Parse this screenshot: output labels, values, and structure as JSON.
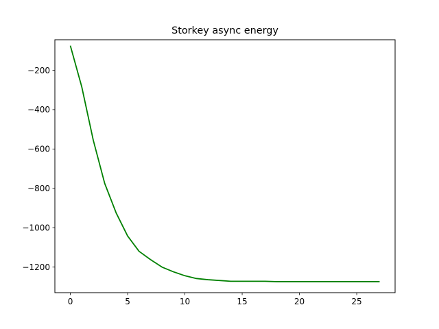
{
  "chart_data": {
    "type": "line",
    "title": "Storkey async energy",
    "xlabel": "",
    "ylabel": "",
    "xlim": [
      -1.35,
      28.35
    ],
    "ylim": [
      -1330,
      -45
    ],
    "x_ticks": [
      0,
      5,
      10,
      15,
      20,
      25
    ],
    "x_tick_labels": [
      "0",
      "5",
      "10",
      "15",
      "20",
      "25"
    ],
    "y_ticks": [
      -200,
      -400,
      -600,
      -800,
      -1000,
      -1200
    ],
    "y_tick_labels": [
      "−200",
      "−400",
      "−600",
      "−800",
      "−1000",
      "−1200"
    ],
    "grid": false,
    "legend": "none",
    "series": [
      {
        "color": "#008000",
        "x": [
          0,
          1,
          2,
          3,
          4,
          5,
          6,
          7,
          8,
          9,
          10,
          11,
          12,
          13,
          14,
          15,
          16,
          17,
          18,
          19,
          20,
          21,
          22,
          23,
          24,
          25,
          26,
          27
        ],
        "values": [
          -75,
          -285,
          -555,
          -775,
          -925,
          -1042,
          -1120,
          -1162,
          -1200,
          -1224,
          -1244,
          -1258,
          -1264,
          -1268,
          -1272,
          -1272,
          -1272,
          -1272,
          -1274,
          -1274,
          -1274,
          -1274,
          -1274,
          -1274,
          -1274,
          -1274,
          -1274,
          -1274
        ]
      }
    ]
  }
}
